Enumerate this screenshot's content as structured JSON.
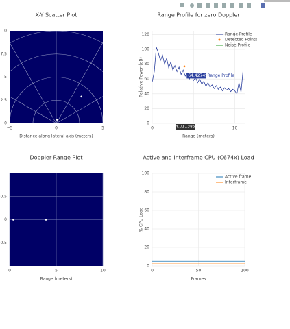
{
  "chart_data": [
    {
      "type": "scatter",
      "title": "X-Y Scatter Plot",
      "xlabel": "Distance along lateral axis (meters)",
      "xlim": [
        -5,
        5
      ],
      "xticks": [
        {
          "value": -5,
          "label": "−5"
        },
        0,
        5
      ],
      "ylim": [
        0,
        10
      ],
      "yticks": [
        0,
        2.5,
        5,
        7.5,
        10
      ],
      "grid": false,
      "plot_bgcolor": "#000066",
      "series": [
        {
          "color": "#ffffff",
          "x": [
            2.7,
            0.1
          ],
          "values": [
            2.9,
            0.4
          ]
        }
      ]
    },
    {
      "type": "line",
      "title": "Range Profile for zero Doppler",
      "xlabel": "Range (meters)",
      "ylabel": "Relative Power (dB)",
      "xlim": [
        0,
        11.2
      ],
      "xticks": [
        0,
        5,
        10
      ],
      "ylim": [
        0,
        125
      ],
      "yticks": [
        0,
        20,
        40,
        60,
        80,
        100,
        120
      ],
      "grid": true,
      "plot_bgcolor": "#ffffff",
      "legend": "top-right",
      "series": [
        {
          "name": "Range Profile",
          "color": "#2a3f9e",
          "mode": "line",
          "x": [
            0,
            0.25,
            0.5,
            0.75,
            1,
            1.25,
            1.5,
            1.75,
            2,
            2.25,
            2.5,
            2.75,
            3,
            3.25,
            3.5,
            3.75,
            4,
            4.25,
            4.5,
            4.75,
            5,
            5.25,
            5.5,
            5.75,
            6,
            6.25,
            6.5,
            6.75,
            7,
            7.25,
            7.5,
            7.75,
            8,
            8.25,
            8.5,
            8.75,
            9,
            9.25,
            9.5,
            9.75,
            10,
            10.25,
            10.5,
            10.75,
            11
          ],
          "values": [
            56,
            70,
            103,
            95,
            85,
            92,
            80,
            88,
            75,
            83,
            72,
            78,
            70,
            76,
            66,
            72,
            64,
            68,
            60,
            66,
            58,
            62,
            55,
            60,
            53,
            57,
            50,
            55,
            49,
            52,
            47,
            51,
            46,
            49,
            44,
            48,
            45,
            47,
            43,
            46,
            44,
            40,
            55,
            42,
            72
          ]
        },
        {
          "name": "Detected Points",
          "color": "#ff7f0e",
          "mode": "markers",
          "x": [
            3.9
          ],
          "values": [
            77
          ]
        },
        {
          "name": "Noise Profile",
          "color": "#2ca02c",
          "mode": "line",
          "x": [],
          "values": []
        }
      ],
      "hover": {
        "x": 4.011385,
        "y": 64.42749,
        "label": "Range Profile"
      }
    },
    {
      "type": "scatter",
      "title": "Doppler-Range Plot",
      "xlabel": "Range (meters)",
      "xlim": [
        0,
        10
      ],
      "xticks": [
        0,
        5,
        10
      ],
      "ylim": [
        -1,
        1
      ],
      "yticks": [
        {
          "value": -0.5,
          "label": "−0.5"
        },
        0,
        0.5
      ],
      "grid": true,
      "plot_bgcolor": "#000066",
      "series": [
        {
          "color": "#ffffff",
          "x": [
            0.4,
            3.9
          ],
          "values": [
            0,
            0
          ]
        }
      ]
    },
    {
      "type": "line",
      "title": "Active and Interframe  CPU (C674x) Load",
      "xlabel": "Frames",
      "ylabel": "% CPU Load",
      "xlim": [
        0,
        100
      ],
      "xticks": [
        0,
        50,
        100
      ],
      "ylim": [
        0,
        100
      ],
      "yticks": [
        0,
        20,
        40,
        60,
        80,
        100
      ],
      "grid": true,
      "plot_bgcolor": "#ffffff",
      "legend": "top-right",
      "series": [
        {
          "name": "Active frame",
          "color": "#1f77b4",
          "mode": "line",
          "x": [
            0,
            100
          ],
          "values": [
            5,
            5
          ]
        },
        {
          "name": "Interframe",
          "color": "#ff7f0e",
          "mode": "line",
          "x": [
            0,
            100
          ],
          "values": [
            3,
            3
          ]
        }
      ]
    }
  ]
}
